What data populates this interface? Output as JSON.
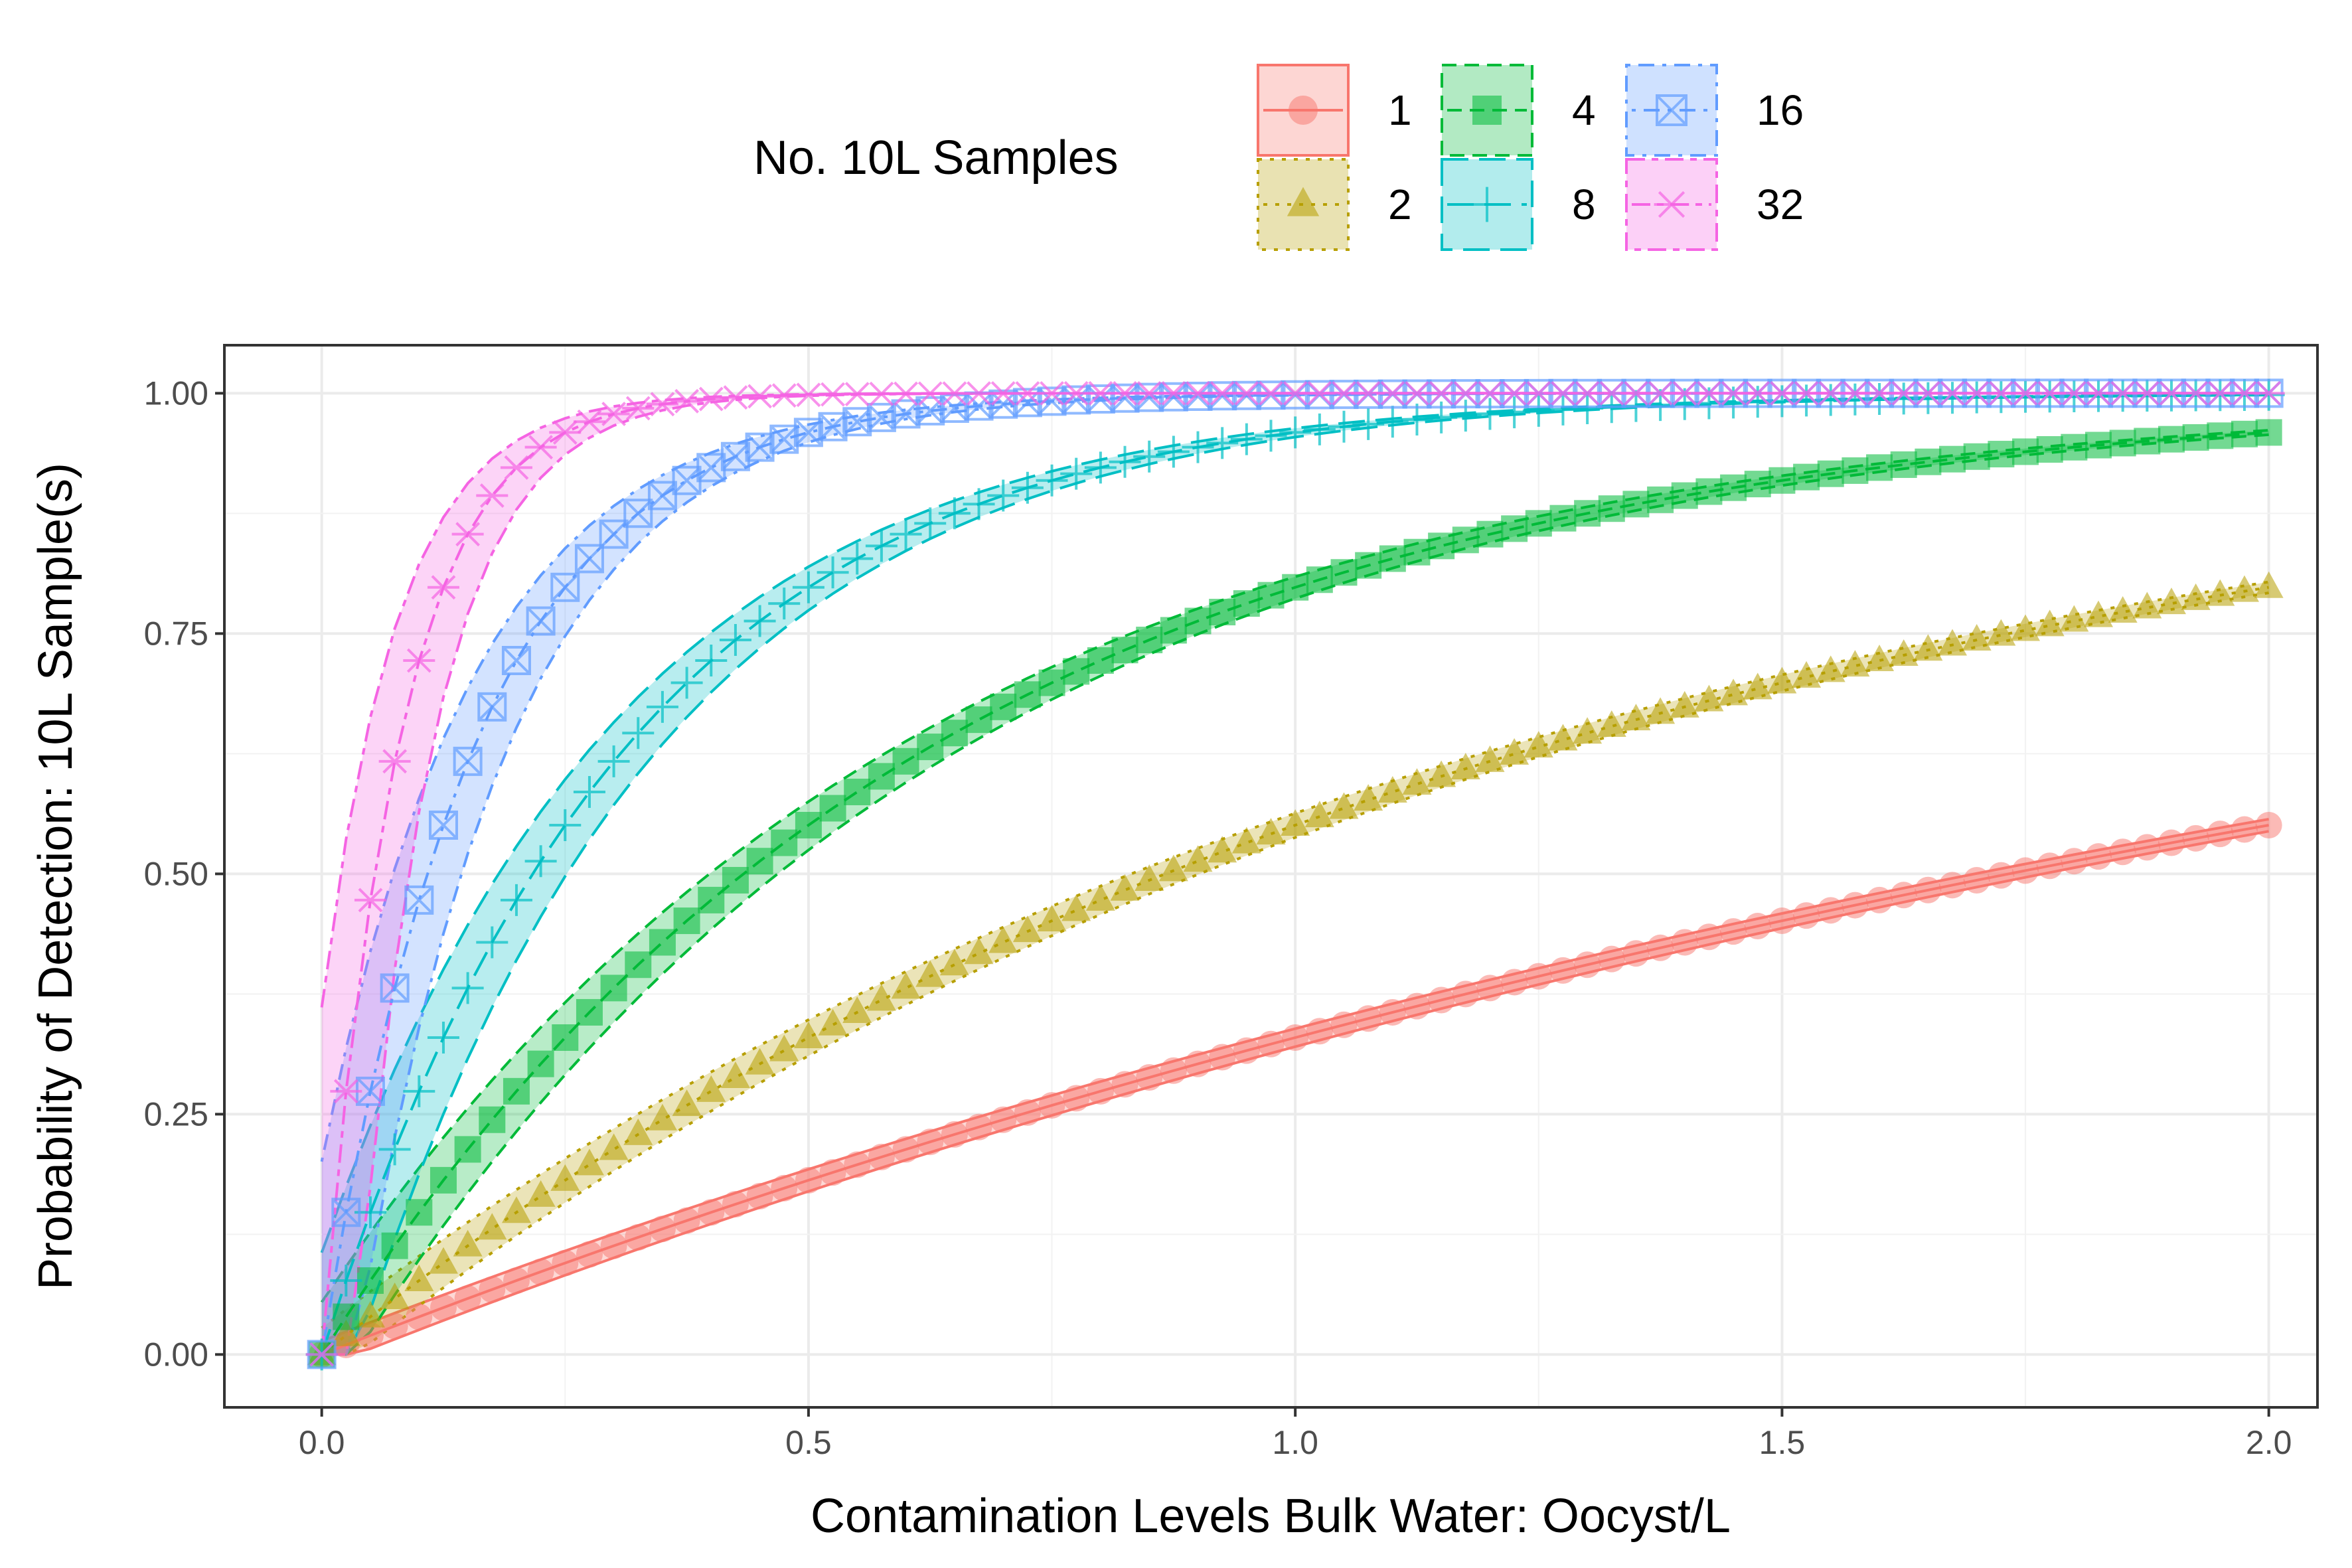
{
  "chart_data": {
    "type": "line",
    "xlabel": "Contamination Levels Bulk Water: Oocyst/L",
    "ylabel": "Probability of Detection: 10L Sample(s)",
    "xlim": [
      -0.1,
      2.05
    ],
    "ylim": [
      -0.055,
      1.05
    ],
    "x_ticks": [
      "0.0",
      "0.5",
      "1.0",
      "1.5",
      "2.0"
    ],
    "y_ticks": [
      "0.00",
      "0.25",
      "0.50",
      "0.75",
      "1.00"
    ],
    "grid": true,
    "legend": {
      "title": "No. 10L Samples",
      "placement": "top",
      "entries": [
        "1",
        "2",
        "4",
        "8",
        "16",
        "32"
      ]
    },
    "x_step": 0.025,
    "x_max": 2.0,
    "band_half_width": 0.035,
    "series": [
      {
        "name": "1",
        "color": "#F8766D",
        "shape": "circle",
        "linetype": "solid",
        "rate_per_L": 2.5
      },
      {
        "name": "2",
        "color": "#B79F00",
        "shape": "triangle",
        "linetype": "dotted",
        "rate_per_L": 2.5
      },
      {
        "name": "4",
        "color": "#00BA38",
        "shape": "square",
        "linetype": "dashed",
        "rate_per_L": 2.5
      },
      {
        "name": "8",
        "color": "#00BFC4",
        "shape": "plus",
        "linetype": "longdash",
        "rate_per_L": 2.5
      },
      {
        "name": "16",
        "color": "#619CFF",
        "shape": "square-cross",
        "linetype": "dotdash",
        "rate_per_L": 2.5
      },
      {
        "name": "32",
        "color": "#F564E3",
        "shape": "asterisk",
        "linetype": "twodash",
        "rate_per_L": 2.5
      }
    ],
    "samples_per_series": [
      1,
      2,
      4,
      8,
      16,
      32
    ],
    "sample_volume_L": 10,
    "model": "1 - exp(-x * 10 * n * 0.04)"
  }
}
